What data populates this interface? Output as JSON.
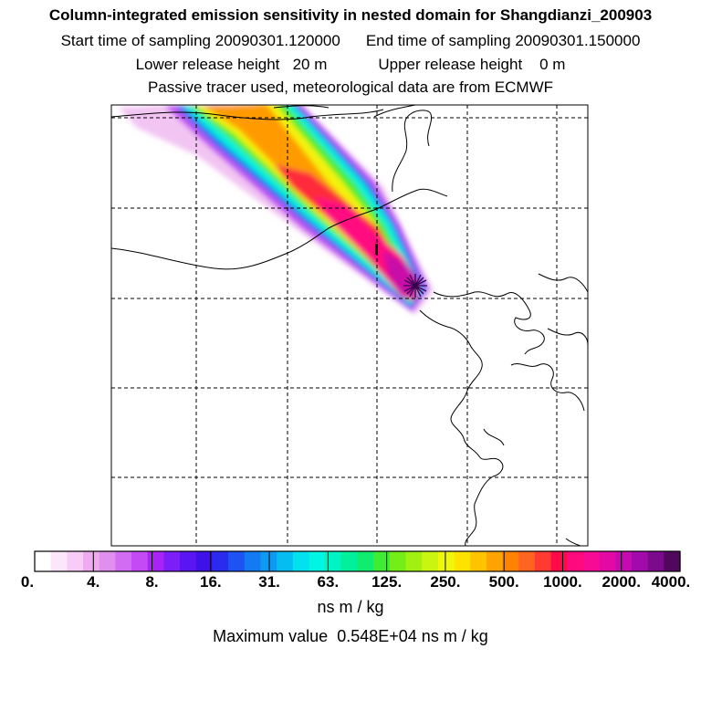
{
  "header": {
    "title": "Column-integrated emission sensitivity in nested domain for Shangdianzi_200903",
    "start_label": "Start time of sampling",
    "start_value": "20090301.120000",
    "end_label": "End time of sampling",
    "end_value": "20090301.150000",
    "lower_label": "Lower release height",
    "lower_value": "20 m",
    "upper_label": "Upper release height",
    "upper_value": "0 m",
    "tracer_note": "Passive tracer used, meteorological data are from ECMWF"
  },
  "legend": {
    "ticks": [
      "0.",
      "4.",
      "8.",
      "16.",
      "31.",
      "63.",
      "125.",
      "250.",
      "500.",
      "1000.",
      "2000.",
      "4000."
    ],
    "units": "ns m / kg",
    "maximum_label": "Maximum value",
    "maximum_value": "0.548E+04 ns m / kg",
    "colors": [
      "#ffffff",
      "#fbe6fb",
      "#f7ccf7",
      "#f0aaf0",
      "#e08fef",
      "#d26cf2",
      "#c34af5",
      "#a923f7",
      "#7b1ef7",
      "#5a16f2",
      "#3e10ea",
      "#2b2bf0",
      "#1f52f2",
      "#147af2",
      "#0c9bf0",
      "#05bdf0",
      "#00e3ef",
      "#00f5e3",
      "#00f3c4",
      "#00f09c",
      "#10ec6d",
      "#40ec33",
      "#74ee16",
      "#a0f012",
      "#c9f510",
      "#eff70a",
      "#ffe300",
      "#ffc300",
      "#ffa300",
      "#ff8300",
      "#ff6420",
      "#ff3a30",
      "#ff0a48",
      "#ff0a7c",
      "#f70a94",
      "#e30aa4",
      "#c70ab0",
      "#a30aac",
      "#7c0a8c",
      "#52075e"
    ]
  },
  "map": {
    "receptor_marker": "receptor-star-icon"
  }
}
